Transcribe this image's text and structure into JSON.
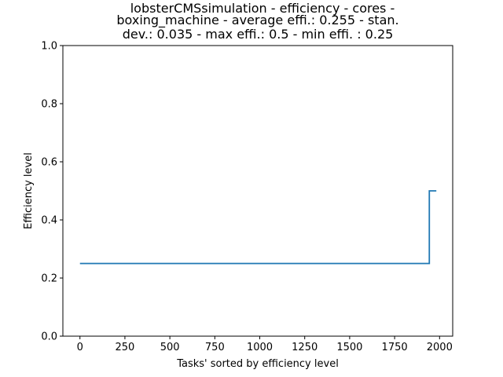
{
  "chart_data": {
    "type": "line",
    "title_lines": [
      "lobsterCMSsimulation - efficiency - cores -",
      "boxing_machine - average effi.: 0.255 - stan.",
      "dev.: 0.035 - max effi.: 0.5 - min effi. : 0.25"
    ],
    "xlabel": "Tasks' sorted by efficiency level",
    "ylabel": "Efficiency level",
    "xlim": [
      -95,
      2073
    ],
    "ylim": [
      0,
      1.0
    ],
    "x_ticks": [
      0,
      250,
      500,
      750,
      1000,
      1250,
      1500,
      1750,
      2000
    ],
    "y_ticks": [
      0.0,
      0.2,
      0.4,
      0.6,
      0.8,
      1.0
    ],
    "x_tick_labels": [
      "0",
      "250",
      "500",
      "750",
      "1000",
      "1250",
      "1500",
      "1750",
      "2000"
    ],
    "y_tick_labels": [
      "0.0",
      "0.2",
      "0.4",
      "0.6",
      "0.8",
      "1.0"
    ],
    "series": [
      {
        "color": "#1f77b4",
        "x": [
          0,
          1943,
          1943,
          1982
        ],
        "y": [
          0.25,
          0.25,
          0.5,
          0.5
        ]
      }
    ],
    "grid": false,
    "legend": "none"
  }
}
